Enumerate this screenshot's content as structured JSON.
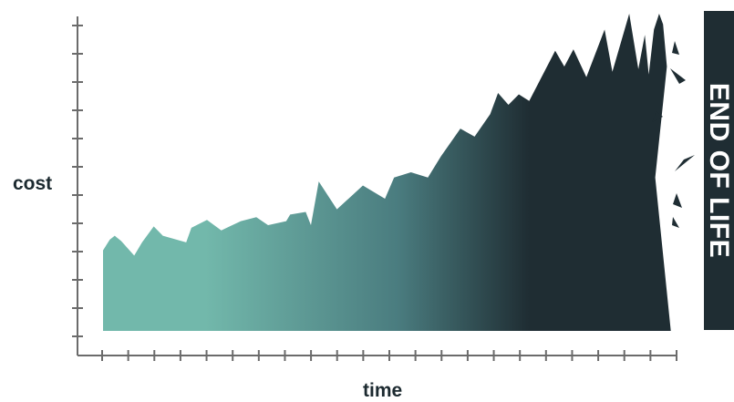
{
  "chart_data": {
    "type": "area",
    "xlabel": "time",
    "ylabel": "cost",
    "annotation": "END OF LIFE",
    "xlim": [
      0,
      22
    ],
    "ylim": [
      0,
      12
    ],
    "x_ticks": 22,
    "y_ticks": 12,
    "colors": {
      "start": "#72b8ab",
      "end": "#1f2d33",
      "axis": "#6b6b6b",
      "panel": "#1f2d33"
    },
    "series": [
      {
        "points": [
          [
            0.0,
            3.05
          ],
          [
            0.26,
            3.45
          ],
          [
            0.45,
            3.6
          ],
          [
            0.7,
            3.4
          ],
          [
            1.2,
            2.85
          ],
          [
            1.5,
            3.35
          ],
          [
            1.95,
            3.95
          ],
          [
            2.3,
            3.6
          ],
          [
            3.2,
            3.35
          ],
          [
            3.4,
            3.9
          ],
          [
            4.0,
            4.2
          ],
          [
            4.55,
            3.8
          ],
          [
            5.3,
            4.15
          ],
          [
            5.9,
            4.3
          ],
          [
            6.35,
            4.0
          ],
          [
            7.05,
            4.15
          ],
          [
            7.2,
            4.4
          ],
          [
            7.8,
            4.5
          ],
          [
            8.0,
            4.0
          ],
          [
            8.3,
            5.65
          ],
          [
            9.0,
            4.6
          ],
          [
            10.0,
            5.5
          ],
          [
            10.85,
            5.0
          ],
          [
            11.2,
            5.8
          ],
          [
            11.85,
            6.0
          ],
          [
            12.5,
            5.8
          ],
          [
            13.0,
            6.6
          ],
          [
            13.75,
            7.65
          ],
          [
            14.3,
            7.35
          ],
          [
            14.9,
            8.2
          ],
          [
            15.2,
            9.0
          ],
          [
            15.6,
            8.55
          ],
          [
            16.0,
            8.95
          ],
          [
            16.4,
            8.7
          ],
          [
            17.4,
            10.6
          ],
          [
            17.75,
            10.0
          ],
          [
            18.1,
            10.65
          ],
          [
            18.6,
            9.6
          ],
          [
            19.3,
            11.4
          ],
          [
            19.6,
            9.8
          ],
          [
            20.25,
            12.0
          ],
          [
            20.6,
            9.9
          ],
          [
            20.85,
            11.2
          ],
          [
            21.0,
            9.7
          ],
          [
            21.2,
            11.4
          ],
          [
            21.4,
            12.0
          ],
          [
            21.55,
            11.6
          ],
          [
            21.7,
            10.0
          ],
          [
            21.25,
            5.8
          ],
          [
            21.85,
            0
          ]
        ]
      }
    ]
  }
}
